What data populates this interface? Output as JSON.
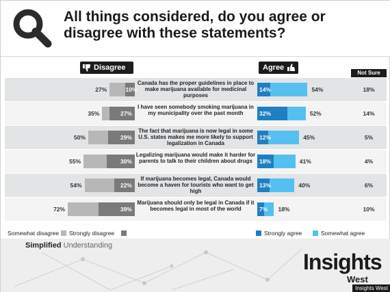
{
  "title": "All things considered, do you agree or disagree with these statements?",
  "headers": {
    "disagree": "Disagree",
    "agree": "Agree",
    "not_sure": "Not Sure"
  },
  "chart_data": {
    "type": "bar",
    "title": "All things considered, do you agree or disagree with these statements?",
    "xlabel": "",
    "ylabel": "",
    "grid": false,
    "legend_position": "bottom",
    "series_names": [
      "Somewhat disagree",
      "Strongly disagree",
      "Strongly agree",
      "Somewhat agree"
    ],
    "rows": [
      {
        "statement": "Canada has the proper guidelines in place to make marijuana available for medicinal purposes",
        "disagree_total": 27,
        "strongly_disagree": 10,
        "agree_total": 54,
        "strongly_agree": 14,
        "not_sure": 18
      },
      {
        "statement": "I have seen somebody smoking marijuana in my municipality over the past month",
        "disagree_total": 35,
        "strongly_disagree": 27,
        "agree_total": 52,
        "strongly_agree": 32,
        "not_sure": 14
      },
      {
        "statement": "The fact that marijuana is now legal in some U.S. states makes me more likely to support legalization in Canada",
        "disagree_total": 50,
        "strongly_disagree": 29,
        "agree_total": 45,
        "strongly_agree": 12,
        "not_sure": 5
      },
      {
        "statement": "Legalizing marijuana would make it harder for parents to talk to their children about drugs",
        "disagree_total": 55,
        "strongly_disagree": 30,
        "agree_total": 41,
        "strongly_agree": 18,
        "not_sure": 4
      },
      {
        "statement": "If marijuana becomes legal, Canada would become a haven for tourists who want to get high",
        "disagree_total": 54,
        "strongly_disagree": 22,
        "agree_total": 40,
        "strongly_agree": 13,
        "not_sure": 6
      },
      {
        "statement": "Marijuana should only be legal in Canada if it becomes legal in most of the world",
        "disagree_total": 72,
        "strongly_disagree": 39,
        "agree_total": 18,
        "strongly_agree": 7,
        "not_sure": 10
      }
    ]
  },
  "legend": {
    "somewhat_disagree": "Somewhat disagree",
    "strongly_disagree": "Strongly disagree",
    "strongly_agree": "Strongly agree",
    "somewhat_agree": "Somewhat agree"
  },
  "colors": {
    "somewhat_disagree": "#b7b7b7",
    "strongly_disagree": "#7a7a7a",
    "strongly_agree": "#1f7fc3",
    "somewhat_agree": "#54c0ef"
  },
  "footer": {
    "tagline_bold": "Simplified",
    "tagline_light": "Understanding",
    "brand": "Insights",
    "brand_sub": "West",
    "credit": "Insights West"
  }
}
